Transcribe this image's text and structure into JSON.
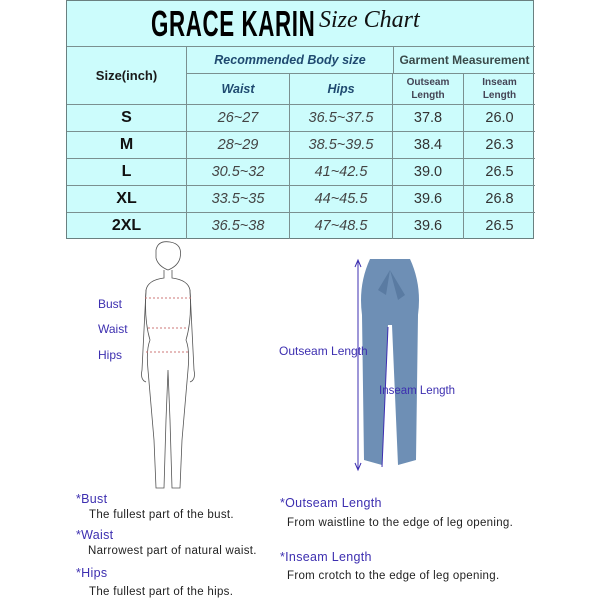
{
  "header": {
    "brand": "GRACE KARIN",
    "subtitle": "Size Chart"
  },
  "table": {
    "size_header": "Size(inch)",
    "body_group": "Recommended Body size",
    "garment_group": "Garment Measurement",
    "columns": [
      "Waist",
      "Hips",
      "Outseam Length",
      "Inseam Length"
    ],
    "rows": [
      {
        "size": "S",
        "waist": "26~27",
        "hips": "36.5~37.5",
        "outseam": "37.8",
        "inseam": "26.0"
      },
      {
        "size": "M",
        "waist": "28~29",
        "hips": "38.5~39.5",
        "outseam": "38.4",
        "inseam": "26.3"
      },
      {
        "size": "L",
        "waist": "30.5~32",
        "hips": "41~42.5",
        "outseam": "39.0",
        "inseam": "26.5"
      },
      {
        "size": "XL",
        "waist": "33.5~35",
        "hips": "44~45.5",
        "outseam": "39.6",
        "inseam": "26.8"
      },
      {
        "size": "2XL",
        "waist": "36.5~38",
        "hips": "47~48.5",
        "outseam": "39.6",
        "inseam": "26.5"
      }
    ]
  },
  "figure": {
    "labels": [
      "Bust",
      "Waist",
      "Hips"
    ]
  },
  "pants": {
    "outseam_label": "Outseam Length",
    "inseam_label": "Inseam Length",
    "color": "#6e8fb5"
  },
  "definitions": [
    {
      "term": "*Bust",
      "text": "The fullest part of the bust."
    },
    {
      "term": "*Waist",
      "text": "Narrowest part of natural waist."
    },
    {
      "term": "*Hips",
      "text": "The fullest part of the hips."
    },
    {
      "term": "*Outseam Length",
      "text": "From waistline to the edge of leg opening."
    },
    {
      "term": "*Inseam Length",
      "text": "From crotch to the edge of leg opening."
    }
  ]
}
